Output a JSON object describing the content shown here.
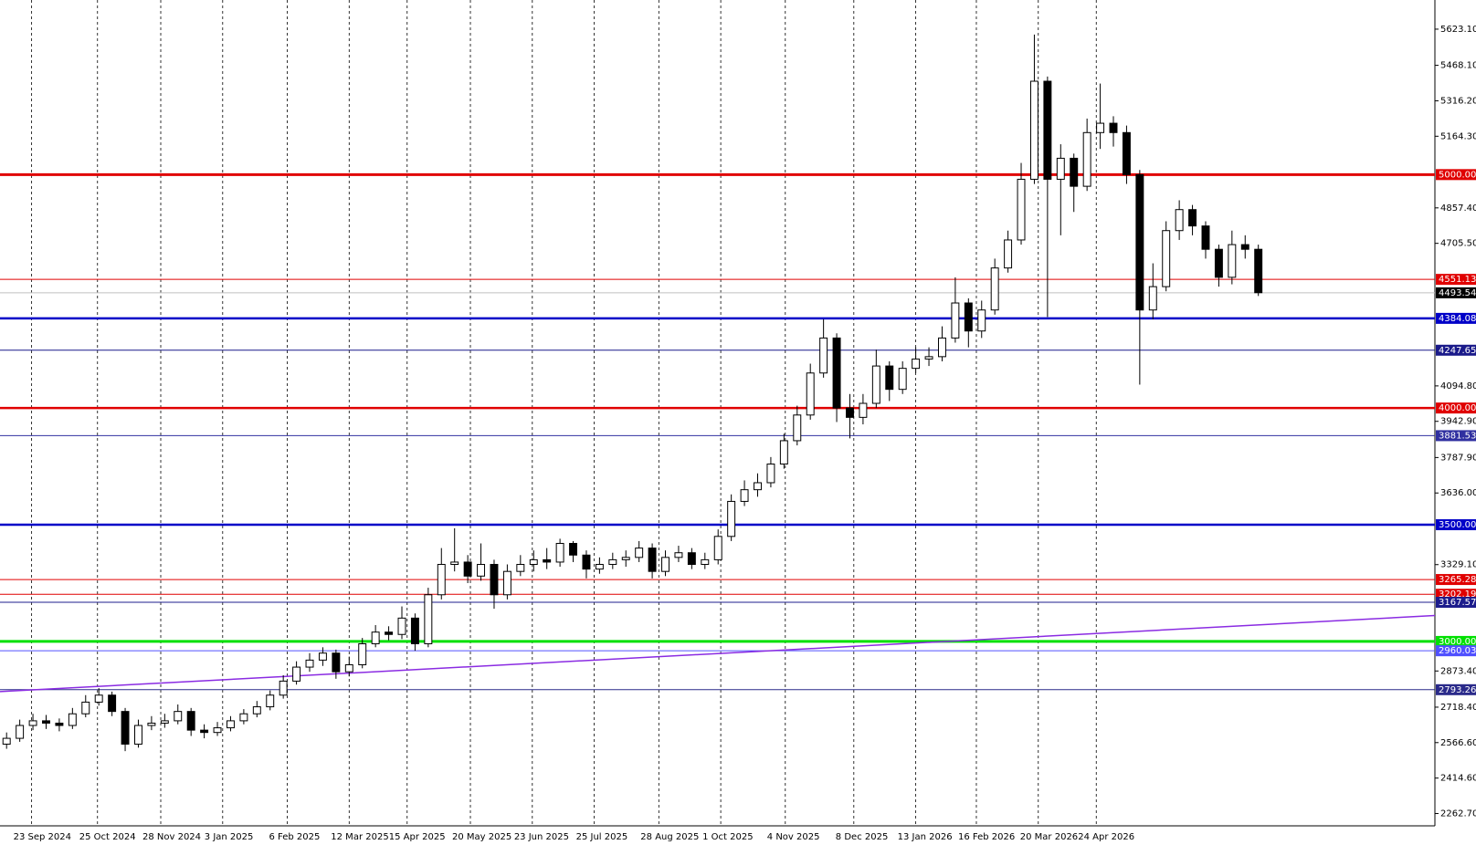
{
  "chart_data": {
    "type": "candlestick",
    "xlim": [
      -0.5,
      108.4
    ],
    "ylim": [
      2210,
      5748
    ],
    "xticks": [
      {
        "value": 1.9,
        "label": "23 Sep 2024"
      },
      {
        "value": 6.9,
        "label": "25 Oct 2024"
      },
      {
        "value": 11.7,
        "label": "28 Nov 2024"
      },
      {
        "value": 16.4,
        "label": "3 Jan 2025"
      },
      {
        "value": 21.3,
        "label": "6 Feb 2025"
      },
      {
        "value": 26.0,
        "label": "12 Mar 2025"
      },
      {
        "value": 30.4,
        "label": "15 Apr 2025"
      },
      {
        "value": 35.2,
        "label": "20 May 2025"
      },
      {
        "value": 39.9,
        "label": "23 Jun 2025"
      },
      {
        "value": 44.6,
        "label": "25 Jul 2025"
      },
      {
        "value": 49.5,
        "label": "28 Aug 2025"
      },
      {
        "value": 54.2,
        "label": "1 Oct 2025"
      },
      {
        "value": 59.1,
        "label": "4 Nov 2025"
      },
      {
        "value": 64.3,
        "label": "8 Dec 2025"
      },
      {
        "value": 69.0,
        "label": "13 Jan 2026"
      },
      {
        "value": 73.6,
        "label": "16 Feb 2026"
      },
      {
        "value": 78.3,
        "label": "20 Mar 2026"
      },
      {
        "value": 82.7,
        "label": "24 Apr 2026"
      }
    ],
    "yticks": [
      {
        "value": 5623.1,
        "label": "5623.10"
      },
      {
        "value": 5468.1,
        "label": "5468.10"
      },
      {
        "value": 5316.2,
        "label": "5316.20"
      },
      {
        "value": 5164.3,
        "label": "5164.30"
      },
      {
        "value": 4857.4,
        "label": "4857.40"
      },
      {
        "value": 4705.5,
        "label": "4705.50"
      },
      {
        "value": 4094.8,
        "label": "4094.80"
      },
      {
        "value": 3942.9,
        "label": "3942.90"
      },
      {
        "value": 3787.9,
        "label": "3787.90"
      },
      {
        "value": 3636,
        "label": "3636.00"
      },
      {
        "value": 3329.1,
        "label": "3329.10"
      },
      {
        "value": 2873.4,
        "label": "2873.40"
      },
      {
        "value": 2718.4,
        "label": "2718.40"
      },
      {
        "value": 2566.6,
        "label": "2566.60"
      },
      {
        "value": 2414.6,
        "label": "2414.60"
      },
      {
        "value": 2262.7,
        "label": "2262.70"
      }
    ],
    "grid": true,
    "up_color": "#ffffff",
    "down_color": "#000000",
    "open": [
      2560,
      2585,
      2640,
      2660,
      2650,
      2640,
      2690,
      2740,
      2770,
      2700,
      2560,
      2640,
      2650,
      2660,
      2700,
      2620,
      2610,
      2630,
      2660,
      2690,
      2720,
      2770,
      2830,
      2890,
      2920,
      2950,
      2870,
      2900,
      2990,
      3040,
      3030,
      3100,
      2990,
      3200,
      3330,
      3340,
      3280,
      3330,
      3200,
      3300,
      3330,
      3350,
      3340,
      3420,
      3370,
      3310,
      3330,
      3350,
      3360,
      3400,
      3300,
      3360,
      3380,
      3330,
      3350,
      3450,
      3600,
      3650,
      3680,
      3760,
      3860,
      3970,
      4150,
      4300,
      4000,
      3960,
      4020,
      4180,
      4080,
      4170,
      4210,
      4220,
      4300,
      4450,
      4330,
      4420,
      4600,
      4720,
      4980,
      5400,
      4980,
      5070,
      4950,
      5180,
      5220,
      5180,
      5000,
      4420,
      4520,
      4760,
      4850,
      4780,
      4680,
      4560,
      4700,
      4680
    ],
    "high": [
      2610,
      2665,
      2690,
      2685,
      2670,
      2715,
      2770,
      2800,
      2785,
      2715,
      2665,
      2680,
      2690,
      2730,
      2715,
      2645,
      2655,
      2680,
      2710,
      2745,
      2790,
      2855,
      2915,
      2950,
      2975,
      2965,
      2935,
      3015,
      3070,
      3065,
      3150,
      3120,
      3230,
      3400,
      3485,
      3370,
      3420,
      3350,
      3330,
      3370,
      3390,
      3400,
      3440,
      3430,
      3390,
      3360,
      3380,
      3390,
      3430,
      3420,
      3390,
      3410,
      3400,
      3380,
      3480,
      3630,
      3690,
      3720,
      3790,
      3890,
      4010,
      4190,
      4380,
      4320,
      4060,
      4060,
      4250,
      4200,
      4200,
      4260,
      4260,
      4350,
      4560,
      4470,
      4460,
      4640,
      4760,
      5050,
      5600,
      5420,
      5130,
      5090,
      5240,
      5390,
      5250,
      5210,
      5020,
      4620,
      4800,
      4890,
      4870,
      4800,
      4700,
      4760,
      4740,
      4700
    ],
    "low": [
      2540,
      2570,
      2620,
      2625,
      2615,
      2625,
      2675,
      2725,
      2680,
      2530,
      2545,
      2620,
      2630,
      2645,
      2595,
      2585,
      2595,
      2615,
      2645,
      2675,
      2705,
      2755,
      2815,
      2870,
      2895,
      2840,
      2850,
      2885,
      2975,
      3005,
      3010,
      2960,
      2975,
      3180,
      3300,
      3250,
      3260,
      3140,
      3180,
      3280,
      3300,
      3310,
      3320,
      3340,
      3270,
      3290,
      3310,
      3320,
      3340,
      3270,
      3280,
      3340,
      3310,
      3310,
      3330,
      3430,
      3580,
      3620,
      3660,
      3740,
      3840,
      3950,
      4130,
      3940,
      3870,
      3930,
      4000,
      4030,
      4060,
      4150,
      4180,
      4200,
      4280,
      4260,
      4300,
      4400,
      4580,
      4700,
      4960,
      4390,
      4740,
      4840,
      4930,
      5110,
      5120,
      4960,
      4100,
      4380,
      4500,
      4720,
      4740,
      4640,
      4520,
      4530,
      4640,
      4480
    ],
    "close": [
      2585,
      2640,
      2660,
      2650,
      2640,
      2690,
      2740,
      2770,
      2700,
      2560,
      2640,
      2650,
      2660,
      2700,
      2620,
      2610,
      2630,
      2660,
      2690,
      2720,
      2770,
      2830,
      2890,
      2920,
      2950,
      2870,
      2900,
      2990,
      3040,
      3030,
      3100,
      2990,
      3200,
      3330,
      3340,
      3280,
      3330,
      3200,
      3300,
      3330,
      3350,
      3340,
      3420,
      3370,
      3310,
      3330,
      3350,
      3360,
      3400,
      3300,
      3360,
      3380,
      3330,
      3350,
      3450,
      3600,
      3650,
      3680,
      3760,
      3860,
      3970,
      4150,
      4300,
      4000,
      3960,
      4020,
      4180,
      4080,
      4170,
      4210,
      4220,
      4300,
      4450,
      4330,
      4420,
      4600,
      4720,
      4980,
      5400,
      4980,
      5070,
      4950,
      5180,
      5220,
      5180,
      5000,
      4420,
      4520,
      4760,
      4850,
      4780,
      4680,
      4560,
      4700,
      4680,
      4494
    ],
    "levels": [
      {
        "value": 5000,
        "label": "5000.00",
        "color": "#e00000",
        "width": 3
      },
      {
        "value": 4551.13,
        "label": "4551.13",
        "color": "#e00000",
        "width": 1
      },
      {
        "value": 4384.08,
        "label": "4384.08",
        "color": "#0000c8",
        "width": 2.5
      },
      {
        "value": 4247.65,
        "label": "4247.65",
        "color": "#1a1a8a",
        "width": 1
      },
      {
        "value": 4000,
        "label": "4000.00",
        "color": "#e00000",
        "width": 2.5
      },
      {
        "value": 3881.53,
        "label": "3881.53",
        "color": "#3030a0",
        "width": 1
      },
      {
        "value": 3500,
        "label": "3500.00",
        "color": "#0000c8",
        "width": 2.5
      },
      {
        "value": 3265.28,
        "label": "3265.28",
        "color": "#e00000",
        "width": 1
      },
      {
        "value": 3202.19,
        "label": "3202.19",
        "color": "#e00000",
        "width": 1
      },
      {
        "value": 3167.57,
        "label": "3167.57",
        "color": "#1c1c8c",
        "width": 1
      },
      {
        "value": 3000,
        "label": "3000.00",
        "color": "#00e000",
        "width": 3
      },
      {
        "value": 2960.03,
        "label": "2960.03",
        "color": "#5050ff",
        "width": 1
      },
      {
        "value": 2793.26,
        "label": "2793.26",
        "color": "#2a2a8a",
        "width": 1
      }
    ],
    "current_price": {
      "value": 4493.54,
      "label": "4493.54",
      "color": "#c0c0c0"
    },
    "trendline": {
      "values": [
        2785,
        3111
      ],
      "color": "#8a2be2"
    }
  }
}
